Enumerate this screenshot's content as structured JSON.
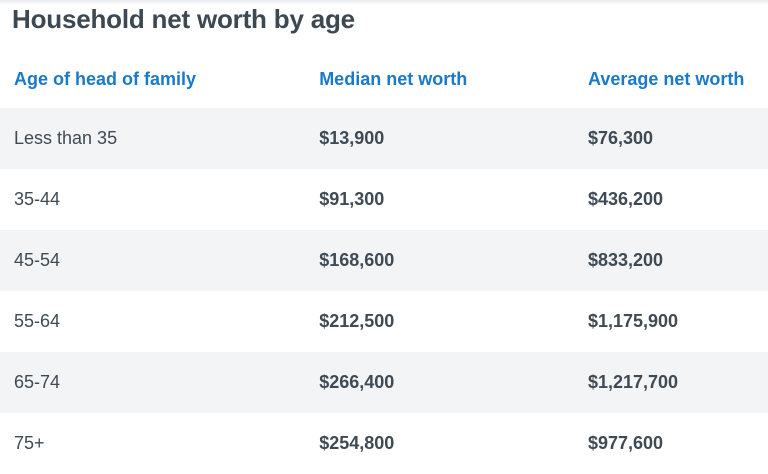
{
  "page": {
    "title": "Household net worth by age"
  },
  "colors": {
    "accent": "#1979ca",
    "title_text": "#3c4852",
    "cell_text": "#3e4a54",
    "row_stripe": "#f3f4f6",
    "top_edge": "#e8eaec"
  },
  "table": {
    "columns": [
      {
        "label": "Age of head of family"
      },
      {
        "label": "Median net worth"
      },
      {
        "label": "Average net worth"
      }
    ],
    "rows": [
      {
        "age": "Less than 35",
        "median": "$13,900",
        "average": "$76,300"
      },
      {
        "age": "35-44",
        "median": "$91,300",
        "average": "$436,200"
      },
      {
        "age": "45-54",
        "median": "$168,600",
        "average": "$833,200"
      },
      {
        "age": "55-64",
        "median": "$212,500",
        "average": "$1,175,900"
      },
      {
        "age": "65-74",
        "median": "$266,400",
        "average": "$1,217,700"
      },
      {
        "age": "75+",
        "median": "$254,800",
        "average": "$977,600"
      }
    ]
  },
  "chart_data": {
    "type": "table",
    "title": "Household net worth by age",
    "columns": [
      "Age of head of family",
      "Median net worth",
      "Average net worth"
    ],
    "categories": [
      "Less than 35",
      "35-44",
      "45-54",
      "55-64",
      "65-74",
      "75+"
    ],
    "series": [
      {
        "name": "Median net worth",
        "values": [
          13900,
          91300,
          168600,
          212500,
          266400,
          254800
        ]
      },
      {
        "name": "Average net worth",
        "values": [
          76300,
          436200,
          833200,
          1175900,
          1217700,
          977600
        ]
      }
    ],
    "layout": "striped rows, left-aligned columns, no gridlines or borders"
  }
}
